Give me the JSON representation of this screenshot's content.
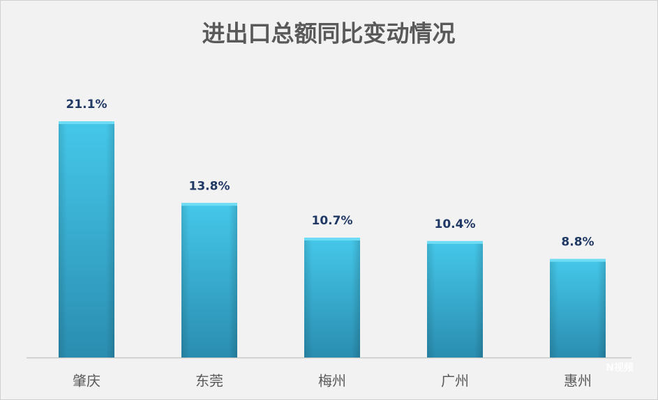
{
  "chart_data": {
    "type": "bar",
    "title": "进出口总额同比变动情况",
    "categories": [
      "肇庆",
      "东莞",
      "梅州",
      "广州",
      "惠州"
    ],
    "values": [
      21.1,
      13.8,
      10.7,
      10.4,
      8.8
    ],
    "value_labels": [
      "21.1%",
      "13.8%",
      "10.7%",
      "10.4%",
      "8.8%"
    ],
    "color": "#38b8dc",
    "watermark": "N视频"
  }
}
